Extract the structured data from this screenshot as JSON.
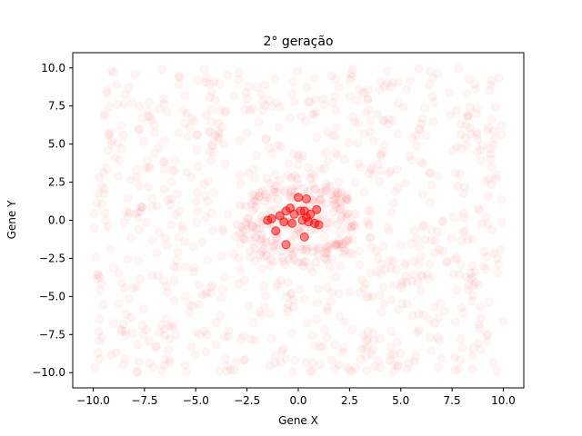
{
  "chart_data": {
    "type": "scatter",
    "title": "2° geração",
    "xlabel": "Gene X",
    "ylabel": "Gene Y",
    "xlim": [
      -11,
      11
    ],
    "ylim": [
      -11,
      11
    ],
    "xticks": [
      -10.0,
      -7.5,
      -5.0,
      -2.5,
      0.0,
      2.5,
      5.0,
      7.5,
      10.0
    ],
    "yticks": [
      -10.0,
      -7.5,
      -5.0,
      -2.5,
      0.0,
      2.5,
      5.0,
      7.5,
      10.0
    ],
    "xtick_labels": [
      "−10.0",
      "−7.5",
      "−5.0",
      "−2.5",
      "0.0",
      "2.5",
      "5.0",
      "7.5",
      "10.0"
    ],
    "ytick_labels": [
      "−10.0",
      "−7.5",
      "−5.0",
      "−2.5",
      "0.0",
      "2.5",
      "5.0",
      "7.5",
      "10.0"
    ],
    "grid": false,
    "marker_color": "#ff0000",
    "background_points_alpha": 0.04,
    "background_points_count": 900,
    "background_points_range": [
      -10,
      10
    ],
    "cluster_points": [
      {
        "x": -1.5,
        "y": 0.0
      },
      {
        "x": -1.3,
        "y": 0.1
      },
      {
        "x": -0.9,
        "y": 0.3
      },
      {
        "x": -0.7,
        "y": -0.1
      },
      {
        "x": -0.6,
        "y": 0.6
      },
      {
        "x": -0.4,
        "y": 0.8
      },
      {
        "x": -0.3,
        "y": -0.2
      },
      {
        "x": -0.2,
        "y": 0.4
      },
      {
        "x": 0.0,
        "y": 1.5
      },
      {
        "x": 0.1,
        "y": 0.6
      },
      {
        "x": 0.2,
        "y": 0.0
      },
      {
        "x": 0.3,
        "y": 0.6
      },
      {
        "x": 0.4,
        "y": 1.4
      },
      {
        "x": 0.4,
        "y": 0.2
      },
      {
        "x": 0.5,
        "y": -0.1
      },
      {
        "x": 0.6,
        "y": 0.4
      },
      {
        "x": 0.8,
        "y": -0.2
      },
      {
        "x": 1.0,
        "y": -0.3
      },
      {
        "x": 0.3,
        "y": -1.1
      },
      {
        "x": -1.1,
        "y": -0.7
      },
      {
        "x": -0.6,
        "y": -1.6
      },
      {
        "x": 0.9,
        "y": 0.7
      }
    ],
    "cluster_alpha": 0.7
  }
}
